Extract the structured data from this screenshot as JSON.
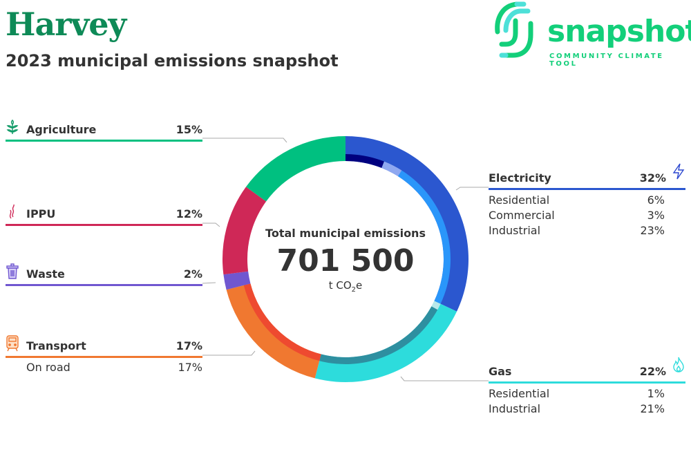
{
  "header": {
    "title": "Harvey",
    "subtitle": "2023 municipal emissions snapshot"
  },
  "logo": {
    "word": "snapshot",
    "tagline": "COMMUNITY CLIMATE TOOL"
  },
  "center": {
    "label": "Total municipal emissions",
    "value": "701 500",
    "unit_prefix": "t CO",
    "unit_sub": "2",
    "unit_suffix": "e"
  },
  "chart_data": {
    "type": "pie",
    "title": "2023 municipal emissions snapshot",
    "total": 701500,
    "unit": "t CO2e",
    "sectors": [
      {
        "name": "Electricity",
        "pct": 32,
        "color": "#2b57cf",
        "icon": "lightning-icon",
        "subs": [
          {
            "name": "Residential",
            "pct": 6,
            "color": "#00007f"
          },
          {
            "name": "Commercial",
            "pct": 3,
            "color": "#8fa8f0"
          },
          {
            "name": "Industrial",
            "pct": 23,
            "color": "#2a96fa"
          }
        ]
      },
      {
        "name": "Gas",
        "pct": 22,
        "color": "#2ddcdc",
        "icon": "flame-icon",
        "subs": [
          {
            "name": "Residential",
            "pct": 1,
            "color": "#b8e8ea"
          },
          {
            "name": "Industrial",
            "pct": 21,
            "color": "#2e8fa0"
          }
        ]
      },
      {
        "name": "Transport",
        "pct": 17,
        "color": "#f07830",
        "icon": "train-icon",
        "subs": [
          {
            "name": "On road",
            "pct": 17,
            "color": "#ee4a30"
          }
        ]
      },
      {
        "name": "Waste",
        "pct": 2,
        "color": "#7057d0",
        "icon": "trash-icon",
        "subs": []
      },
      {
        "name": "IPPU",
        "pct": 12,
        "color": "#cf2857",
        "icon": "smoke-icon",
        "subs": []
      },
      {
        "name": "Agriculture",
        "pct": 15,
        "color": "#00c080",
        "icon": "wheat-icon",
        "subs": []
      }
    ]
  },
  "labels": {
    "electricity": {
      "name": "Electricity",
      "pct": "32%",
      "subs": [
        [
          "Residential",
          "6%"
        ],
        [
          "Commercial",
          "3%"
        ],
        [
          "Industrial",
          "23%"
        ]
      ]
    },
    "gas": {
      "name": "Gas",
      "pct": "22%",
      "subs": [
        [
          "Residential",
          "1%"
        ],
        [
          "Industrial",
          "21%"
        ]
      ]
    },
    "transport": {
      "name": "Transport",
      "pct": "17%",
      "subs": [
        [
          "On road",
          "17%"
        ]
      ]
    },
    "waste": {
      "name": "Waste",
      "pct": "2%"
    },
    "ippu": {
      "name": "IPPU",
      "pct": "12%"
    },
    "agriculture": {
      "name": "Agriculture",
      "pct": "15%"
    }
  }
}
